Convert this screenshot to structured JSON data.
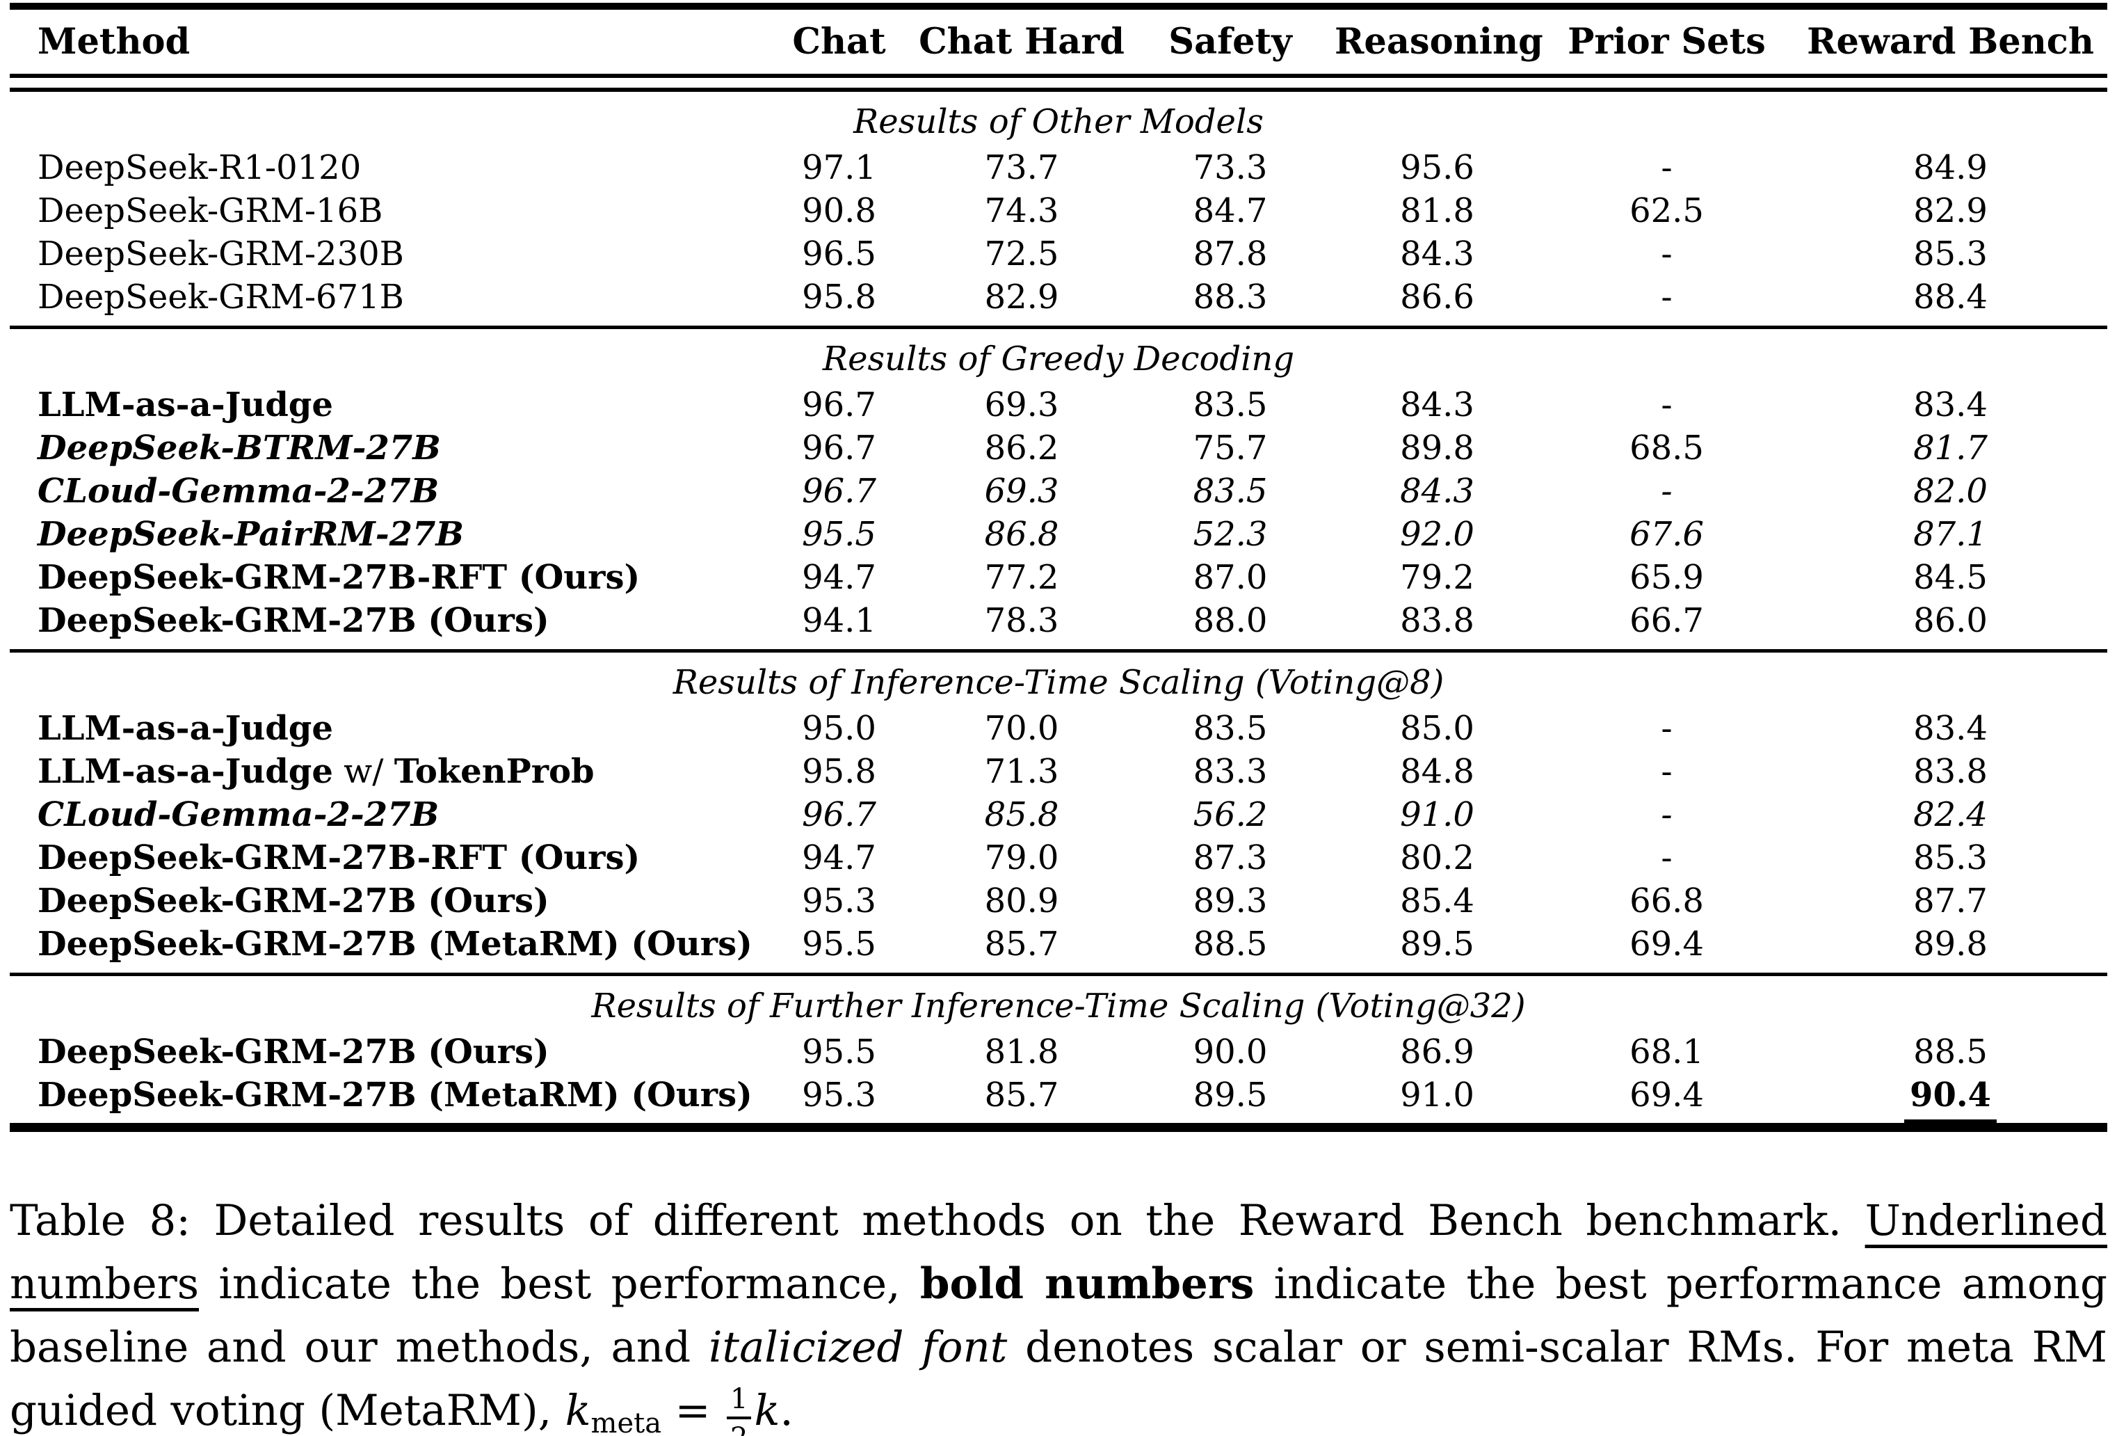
{
  "table": {
    "columns": [
      "Method",
      "Chat",
      "Chat Hard",
      "Safety",
      "Reasoning",
      "Prior Sets",
      "Reward Bench"
    ],
    "sections": [
      {
        "title": "Results of Other Models",
        "rows": [
          {
            "method": "DeepSeek-R1-0120",
            "values": [
              "97.1",
              "73.7",
              "73.3",
              "95.6",
              "-",
              "84.9"
            ]
          },
          {
            "method": "DeepSeek-GRM-16B",
            "values": [
              "90.8",
              "74.3",
              "84.7",
              "81.8",
              "62.5",
              "82.9"
            ]
          },
          {
            "method": "DeepSeek-GRM-230B",
            "values": [
              "96.5",
              "72.5",
              "87.8",
              "84.3",
              "-",
              "85.3"
            ]
          },
          {
            "method": "DeepSeek-GRM-671B",
            "values": [
              "95.8",
              "82.9",
              "88.3",
              "86.6",
              "-",
              "88.4"
            ]
          }
        ]
      },
      {
        "title": "Results of Greedy Decoding",
        "rows": [
          {
            "method": "LLM-as-a-Judge",
            "values": [
              "96.7",
              "69.3",
              "83.5",
              "84.3",
              "-",
              "83.4"
            ]
          },
          {
            "method": "DeepSeek-BTRM-27B",
            "values": [
              "96.7",
              "86.2",
              "75.7",
              "89.8",
              "68.5",
              "81.7"
            ]
          },
          {
            "method": "CLoud-Gemma-2-27B",
            "values": [
              "96.7",
              "69.3",
              "83.5",
              "84.3",
              "-",
              "82.0"
            ]
          },
          {
            "method": "DeepSeek-PairRM-27B",
            "values": [
              "95.5",
              "86.8",
              "52.3",
              "92.0",
              "67.6",
              "87.1"
            ]
          },
          {
            "method": "DeepSeek-GRM-27B-RFT (Ours)",
            "values": [
              "94.7",
              "77.2",
              "87.0",
              "79.2",
              "65.9",
              "84.5"
            ]
          },
          {
            "method": "DeepSeek-GRM-27B (Ours)",
            "values": [
              "94.1",
              "78.3",
              "88.0",
              "83.8",
              "66.7",
              "86.0"
            ]
          }
        ]
      },
      {
        "title": "Results of Inference-Time Scaling (Voting@8)",
        "rows": [
          {
            "method": "LLM-as-a-Judge",
            "values": [
              "95.0",
              "70.0",
              "83.5",
              "85.0",
              "-",
              "83.4"
            ]
          },
          {
            "method_parts": {
              "main": "LLM-as-a-Judge",
              "mid": " w/ ",
              "suffix": "TokenProb"
            },
            "values": [
              "95.8",
              "71.3",
              "83.3",
              "84.8",
              "-",
              "83.8"
            ]
          },
          {
            "method": "CLoud-Gemma-2-27B",
            "values": [
              "96.7",
              "85.8",
              "56.2",
              "91.0",
              "-",
              "82.4"
            ]
          },
          {
            "method": "DeepSeek-GRM-27B-RFT (Ours)",
            "values": [
              "94.7",
              "79.0",
              "87.3",
              "80.2",
              "-",
              "85.3"
            ]
          },
          {
            "method": "DeepSeek-GRM-27B (Ours)",
            "values": [
              "95.3",
              "80.9",
              "89.3",
              "85.4",
              "66.8",
              "87.7"
            ]
          },
          {
            "method": "DeepSeek-GRM-27B (MetaRM) (Ours)",
            "values": [
              "95.5",
              "85.7",
              "88.5",
              "89.5",
              "69.4",
              "89.8"
            ]
          }
        ]
      },
      {
        "title": "Results of Further Inference-Time Scaling (Voting@32)",
        "rows": [
          {
            "method": "DeepSeek-GRM-27B (Ours)",
            "values": [
              "95.5",
              "81.8",
              "90.0",
              "86.9",
              "68.1",
              "88.5"
            ]
          },
          {
            "method": "DeepSeek-GRM-27B (MetaRM) (Ours)",
            "values": [
              "95.3",
              "85.7",
              "89.5",
              "91.0",
              "69.4",
              "90.4"
            ]
          }
        ]
      }
    ]
  },
  "caption": {
    "label": "Table 8:",
    "part1": "Detailed results of different methods on the Reward Bench benchmark.",
    "underlined": "Underlined numbers",
    "part2": "indicate the best performance,",
    "bold": "bold numbers",
    "part3": "indicate the best performance among baseline and our methods, and",
    "italic": "italicized font",
    "part4": "denotes scalar or semi-scalar RMs. For meta RM guided voting (MetaRM),",
    "k1": "k",
    "k_sub": "meta",
    "equals": "=",
    "frac_num": "1",
    "frac_den": "2",
    "k2": "k",
    "period": "."
  }
}
